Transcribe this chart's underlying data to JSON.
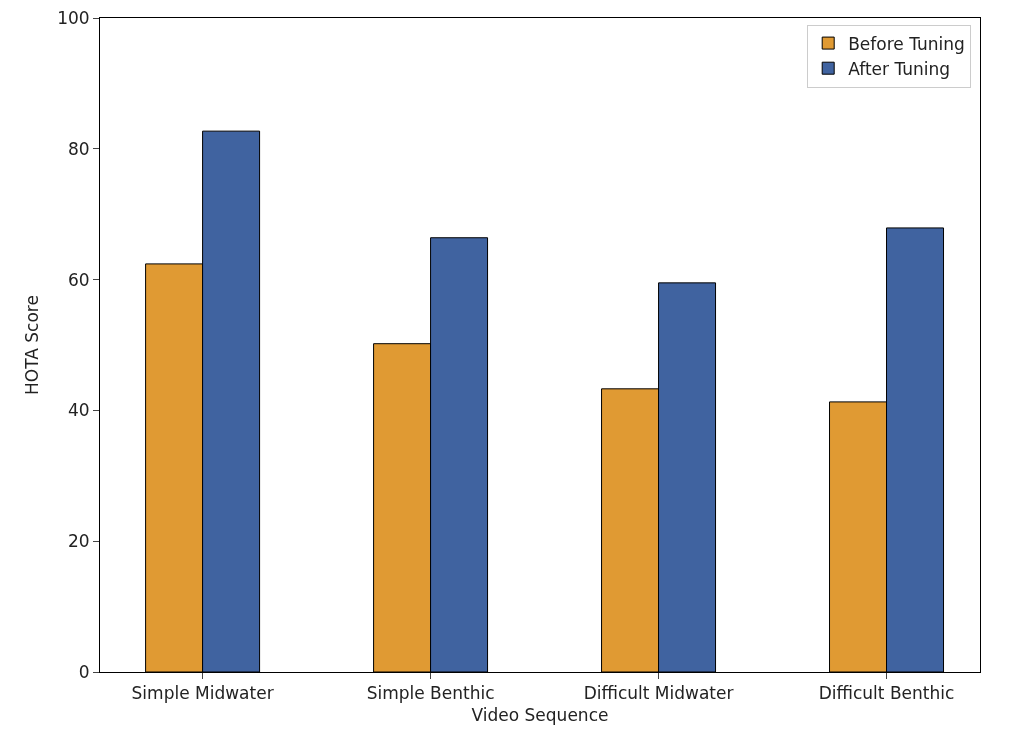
{
  "chart_data": {
    "type": "bar",
    "xlabel": "Video Sequence",
    "ylabel": "HOTA Score",
    "categories": [
      "Simple Midwater",
      "Simple Benthic",
      "Difficult Midwater",
      "Difficult Benthic"
    ],
    "series": [
      {
        "name": "Before Tuning",
        "color": "#e09a33",
        "values": [
          62.4,
          50.2,
          43.3,
          41.3
        ]
      },
      {
        "name": "After Tuning",
        "color": "#4063a0",
        "values": [
          82.7,
          66.4,
          59.5,
          67.9
        ]
      }
    ],
    "ylim": [
      0,
      100
    ],
    "yticks": [
      0,
      20,
      40,
      60,
      80,
      100
    ],
    "grid": false,
    "legend": "top right"
  }
}
